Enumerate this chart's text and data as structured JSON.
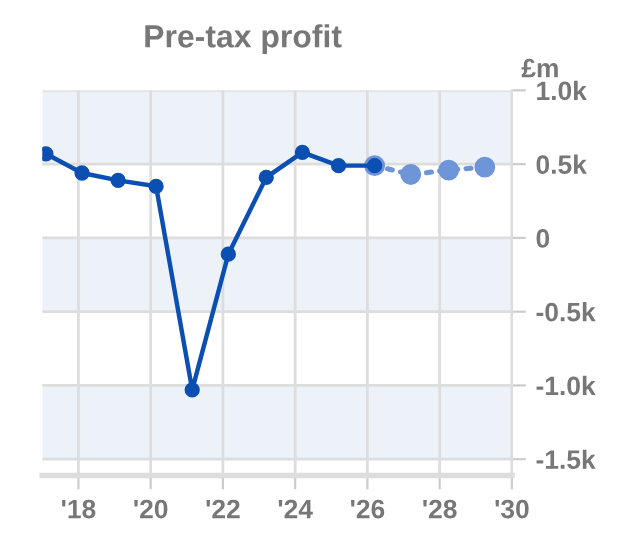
{
  "chart_data": {
    "type": "line",
    "title": "Pre-tax profit",
    "ylabel": "£m",
    "series": [
      {
        "color": "#0b4fb3",
        "line_style": "solid",
        "x": [
          2017.1,
          2018.1,
          2019.1,
          2020.15,
          2021.15,
          2022.15,
          2023.2,
          2024.2,
          2025.2,
          2026.2
        ],
        "values": [
          570,
          440,
          390,
          350,
          -1030,
          -110,
          410,
          580,
          490,
          490
        ]
      },
      {
        "color": "#6d95d8",
        "line_style": "dotted",
        "x": [
          2026.2,
          2027.2,
          2028.25,
          2029.25
        ],
        "values": [
          490,
          430,
          460,
          480
        ]
      }
    ],
    "marker": "circle",
    "xlim": [
      2017.0,
      2030
    ],
    "xticks": [
      {
        "value": 2018,
        "label": "'18"
      },
      {
        "value": 2020,
        "label": "'20"
      },
      {
        "value": 2022,
        "label": "'22"
      },
      {
        "value": 2024,
        "label": "'24"
      },
      {
        "value": 2026,
        "label": "'26"
      },
      {
        "value": 2028,
        "label": "'28"
      },
      {
        "value": 2030,
        "label": "'30"
      }
    ],
    "ylim": [
      -1610,
      1000
    ],
    "yticks": [
      {
        "value": 1000,
        "label": "1.0k"
      },
      {
        "value": 500,
        "label": "0.5k"
      },
      0,
      {
        "value": -500,
        "label": "-0.5k"
      },
      {
        "value": -1000,
        "label": "-1.0k"
      },
      {
        "value": -1500,
        "label": "-1.5k"
      }
    ],
    "bands": [
      {
        "axis": "y",
        "from": 500,
        "to": 1000,
        "color": "#edf2f9"
      },
      {
        "axis": "y",
        "from": -500,
        "to": 0,
        "color": "#edf2f9"
      },
      {
        "axis": "y",
        "from": -1500,
        "to": -1000,
        "color": "#edf2f9"
      }
    ],
    "grid": true
  }
}
